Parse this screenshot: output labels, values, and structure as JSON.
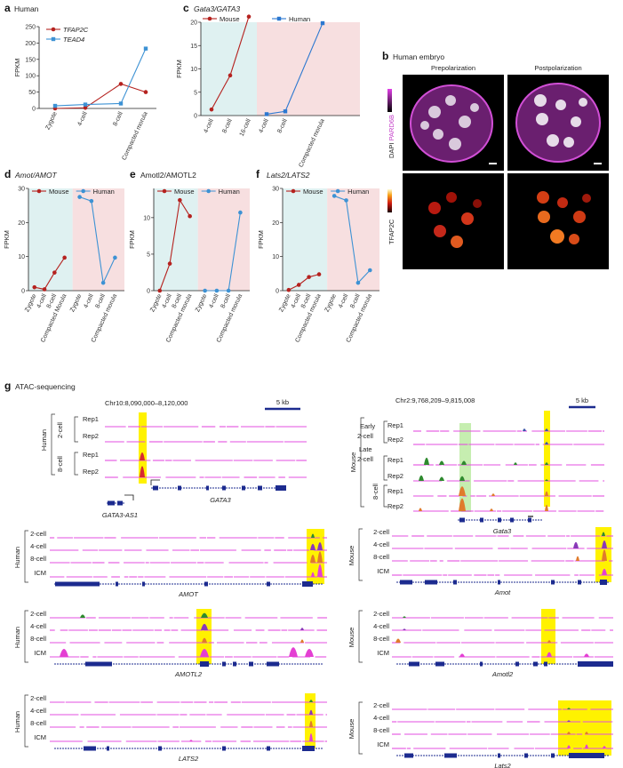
{
  "panels": {
    "a": {
      "letter": "a",
      "title": "Human"
    },
    "c": {
      "letter": "c",
      "title": "Gata3/GATA3"
    },
    "b": {
      "letter": "b",
      "title": "Human embryo",
      "col1": "Prepolarization",
      "col2": "Postpolarization",
      "stain_top_a": "DAPI",
      "stain_top_b": "PARD6B",
      "stain_bottom": "TFAP2C"
    },
    "d": {
      "letter": "d",
      "title": "Amot/AMOT"
    },
    "e": {
      "letter": "e",
      "title": "Amotl2/AMOTL2"
    },
    "f": {
      "letter": "f",
      "title": "Lats2/LATS2"
    },
    "g": {
      "letter": "g",
      "title": "ATAC-sequencing"
    }
  },
  "colors": {
    "mouse": "#b5221f",
    "human": "#3d92d4",
    "human_c": "#2c78d0",
    "mouse_bg": "#dff1f1",
    "human_bg": "#f7dfe0",
    "track": "#e34fe0",
    "highlight": "#fff200",
    "hl_green": "#c6eeb0",
    "early2": "#3b56a8",
    "late2": "#2f8a2f",
    "cell8": "#e07b2c",
    "cell4": "#8a38b8",
    "icm": "#e43fd3",
    "navy": "#1c2b8f"
  },
  "chart_data": [
    {
      "id": "a",
      "type": "line",
      "ylabel": "FPKM",
      "ylim": [
        0,
        250
      ],
      "yticks": [
        0,
        50,
        100,
        150,
        200,
        250
      ],
      "categories": [
        "Zygote",
        "4-cell",
        "8-cell",
        "Compacted morula"
      ],
      "series": [
        {
          "name": "TFAP2C",
          "values": [
            0,
            2,
            75,
            50
          ]
        },
        {
          "name": "TEAD4",
          "values": [
            8,
            12,
            15,
            183
          ]
        }
      ]
    },
    {
      "id": "c",
      "type": "line",
      "ylabel": "FPKM",
      "ylim": [
        0,
        20
      ],
      "yticks": [
        0,
        5,
        10,
        15,
        20
      ],
      "categories_mouse": [
        "4-cell",
        "8-cell",
        "16-cell"
      ],
      "categories_human": [
        "4-cell",
        "8-cell",
        "Compacted morula"
      ],
      "series": [
        {
          "name": "Mouse",
          "values": [
            1.3,
            8.6,
            21.2
          ]
        },
        {
          "name": "Human",
          "values": [
            0.3,
            0.9,
            19.8
          ]
        }
      ]
    },
    {
      "id": "d",
      "type": "line",
      "ylabel": "FPKM",
      "ylim": [
        0,
        30
      ],
      "yticks": [
        0,
        10,
        20,
        30
      ],
      "categories_mouse": [
        "Zygote",
        "4-cell",
        "8-cell",
        "Compacted Morula"
      ],
      "categories_human": [
        "Zygote",
        "4-cell",
        "8-cell",
        "Compacted morula"
      ],
      "series": [
        {
          "name": "Mouse",
          "values": [
            1,
            0.4,
            5.3,
            9.7
          ]
        },
        {
          "name": "Human",
          "values": [
            27.5,
            26.3,
            2.3,
            9.7
          ]
        }
      ]
    },
    {
      "id": "e",
      "type": "line",
      "ylabel": "FPKM",
      "ylim": [
        0,
        14
      ],
      "yticks": [
        0,
        5,
        10
      ],
      "categories_mouse": [
        "Zygote",
        "4-cell",
        "8-cell",
        "Compacted morula"
      ],
      "categories_human": [
        "Zygote",
        "4-cell",
        "8-cell",
        "Compacted morula"
      ],
      "series": [
        {
          "name": "Mouse",
          "values": [
            0,
            3.7,
            12.4,
            10.2
          ]
        },
        {
          "name": "Human",
          "values": [
            0,
            0,
            0,
            10.7
          ]
        }
      ]
    },
    {
      "id": "f",
      "type": "line",
      "ylabel": "FPKM",
      "ylim": [
        0,
        30
      ],
      "yticks": [
        0,
        10,
        20,
        30
      ],
      "categories_mouse": [
        "Zygote",
        "4-cell",
        "8-cell",
        "Compacted morula"
      ],
      "categories_human": [
        "Zygote",
        "4-cell",
        "8-cell",
        "Compacted morula"
      ],
      "series": [
        {
          "name": "Mouse",
          "values": [
            0.2,
            1.7,
            4,
            4.8
          ]
        },
        {
          "name": "Human",
          "values": [
            27.8,
            26.5,
            2.3,
            6
          ]
        }
      ]
    }
  ],
  "atac": {
    "human_gata3": {
      "coord": "Chr10:8,090,000–8,120,000",
      "scale": "5 kb",
      "species": "Human",
      "group1": "2-cell",
      "group2": "8-cell",
      "rep1": "Rep1",
      "rep2": "Rep2",
      "gene": "GATA3",
      "gene2": "GATA3-AS1"
    },
    "mouse_gata3": {
      "coord": "Chr2:9,768,209–9,815,008",
      "scale": "5 kb",
      "species": "Mouse",
      "early_a": "Early",
      "early_b": "2-cell",
      "late_a": "Late",
      "late_b": "2-cell",
      "group3": "8-cell",
      "rep1": "Rep1",
      "rep2": "Rep2",
      "gene": "Gata3"
    },
    "rows": {
      "c2": "2-cell",
      "c4": "4-cell",
      "c8": "8-cell",
      "icm": "ICM"
    },
    "human_species": "Human",
    "mouse_species": "Mouse",
    "genes": {
      "AMOT": "AMOT",
      "Amot": "Amot",
      "AMOTL2": "AMOTL2",
      "Amotl2": "Amotl2",
      "LATS2": "LATS2",
      "Lats2": "Lats2"
    }
  }
}
